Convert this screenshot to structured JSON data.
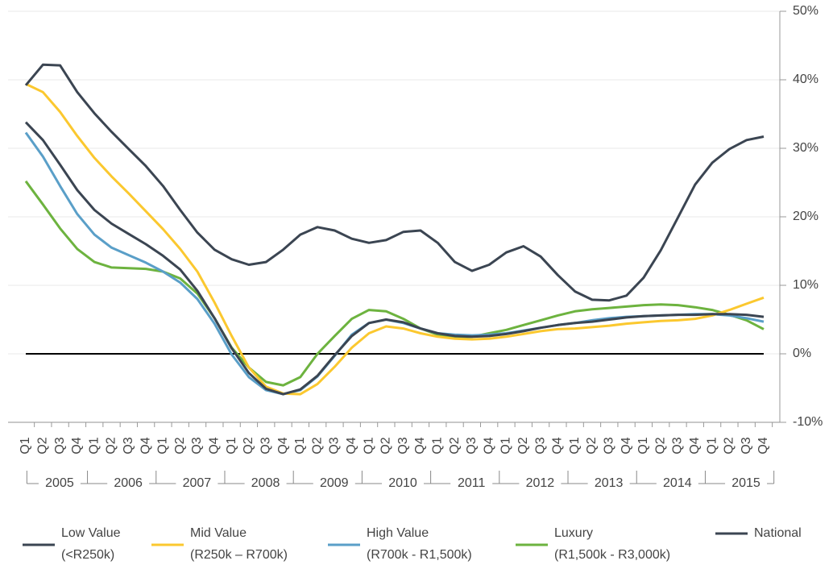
{
  "chart_data": {
    "type": "line",
    "categories": [
      "Q1",
      "Q2",
      "Q3",
      "Q4",
      "Q1",
      "Q2",
      "Q3",
      "Q4",
      "Q1",
      "Q2",
      "Q3",
      "Q4",
      "Q1",
      "Q2",
      "Q3",
      "Q4",
      "Q1",
      "Q2",
      "Q3",
      "Q4",
      "Q1",
      "Q2",
      "Q3",
      "Q4",
      "Q1",
      "Q2",
      "Q3",
      "Q4",
      "Q1",
      "Q2",
      "Q3",
      "Q4",
      "Q1",
      "Q2",
      "Q3",
      "Q4",
      "Q1",
      "Q2",
      "Q3",
      "Q4",
      "Q1",
      "Q2",
      "Q3",
      "Q4"
    ],
    "year_groups": [
      "2005",
      "2006",
      "2007",
      "2008",
      "2009",
      "2010",
      "2011",
      "2012",
      "2013",
      "2014",
      "2015"
    ],
    "ylim": [
      -10,
      50
    ],
    "yticks": [
      {
        "value": -10,
        "label": "-10%"
      },
      {
        "value": 0,
        "label": "0%"
      },
      {
        "value": 10,
        "label": "10%"
      },
      {
        "value": 20,
        "label": "20%"
      },
      {
        "value": 30,
        "label": "30%"
      },
      {
        "value": 40,
        "label": "40%"
      },
      {
        "value": 50,
        "label": "50%"
      }
    ],
    "grid": true,
    "series": [
      {
        "name": "Low Value",
        "name_sub": "(<R250k)",
        "color": "#3b4552",
        "values": [
          39.2,
          42.2,
          42.1,
          38.2,
          35.1,
          32.4,
          29.9,
          27.4,
          24.5,
          21.0,
          17.7,
          15.2,
          13.8,
          13.0,
          13.4,
          15.2,
          17.4,
          18.5,
          18.0,
          16.8,
          16.2,
          16.6,
          17.8,
          18.0,
          16.2,
          13.4,
          12.1,
          13.0,
          14.8,
          15.7,
          14.2,
          11.5,
          9.1,
          7.9,
          7.8,
          8.5,
          11.1,
          15.1,
          19.9,
          24.7,
          27.9,
          29.9,
          31.2,
          31.7
        ]
      },
      {
        "name": "Mid Value",
        "name_sub": "(R250k – R700k)",
        "color": "#fbc82f",
        "values": [
          39.4,
          38.2,
          35.3,
          31.8,
          28.6,
          25.9,
          23.4,
          20.8,
          18.2,
          15.3,
          12.0,
          7.5,
          2.6,
          -2.0,
          -4.8,
          -5.8,
          -5.9,
          -4.4,
          -1.9,
          0.9,
          3.0,
          4.0,
          3.7,
          3.0,
          2.5,
          2.2,
          2.1,
          2.2,
          2.5,
          2.9,
          3.3,
          3.6,
          3.7,
          3.9,
          4.1,
          4.4,
          4.6,
          4.8,
          4.9,
          5.1,
          5.6,
          6.4,
          7.3,
          8.2
        ]
      },
      {
        "name": "High Value",
        "name_sub": "(R700k - R1,500k)",
        "color": "#5a9fc8",
        "values": [
          32.3,
          28.8,
          24.5,
          20.4,
          17.4,
          15.5,
          14.4,
          13.3,
          12.0,
          10.4,
          8.0,
          4.4,
          -0.1,
          -3.4,
          -5.3,
          -5.9,
          -5.3,
          -3.3,
          -0.3,
          2.8,
          4.5,
          5.0,
          4.5,
          3.7,
          3.0,
          2.8,
          2.7,
          2.8,
          3.0,
          3.4,
          3.8,
          4.2,
          4.5,
          4.9,
          5.2,
          5.4,
          5.5,
          5.6,
          5.7,
          5.8,
          5.8,
          5.6,
          5.2,
          4.7
        ]
      },
      {
        "name": "Luxury",
        "name_sub": "(R1,500k - R3,000k)",
        "color": "#6db33f",
        "values": [
          25.2,
          21.8,
          18.3,
          15.3,
          13.4,
          12.6,
          12.5,
          12.4,
          12.0,
          11.0,
          8.8,
          5.2,
          0.9,
          -2.0,
          -4.1,
          -4.6,
          -3.4,
          0.0,
          2.6,
          5.1,
          6.4,
          6.2,
          5.1,
          3.7,
          2.8,
          2.4,
          2.5,
          3.0,
          3.5,
          4.2,
          4.9,
          5.6,
          6.2,
          6.5,
          6.7,
          6.9,
          7.1,
          7.2,
          7.1,
          6.8,
          6.4,
          5.7,
          4.9,
          3.6
        ]
      },
      {
        "name": "National",
        "color": "#3b4552",
        "values": [
          33.8,
          31.2,
          27.6,
          23.9,
          21.0,
          19.0,
          17.5,
          16.0,
          14.3,
          12.3,
          9.2,
          5.2,
          0.8,
          -2.8,
          -5.1,
          -5.9,
          -5.2,
          -3.2,
          -0.2,
          2.6,
          4.5,
          5.0,
          4.6,
          3.7,
          3.0,
          2.6,
          2.5,
          2.6,
          2.9,
          3.3,
          3.8,
          4.2,
          4.5,
          4.7,
          5.0,
          5.3,
          5.5,
          5.6,
          5.7,
          5.7,
          5.8,
          5.8,
          5.7,
          5.4
        ]
      }
    ]
  }
}
